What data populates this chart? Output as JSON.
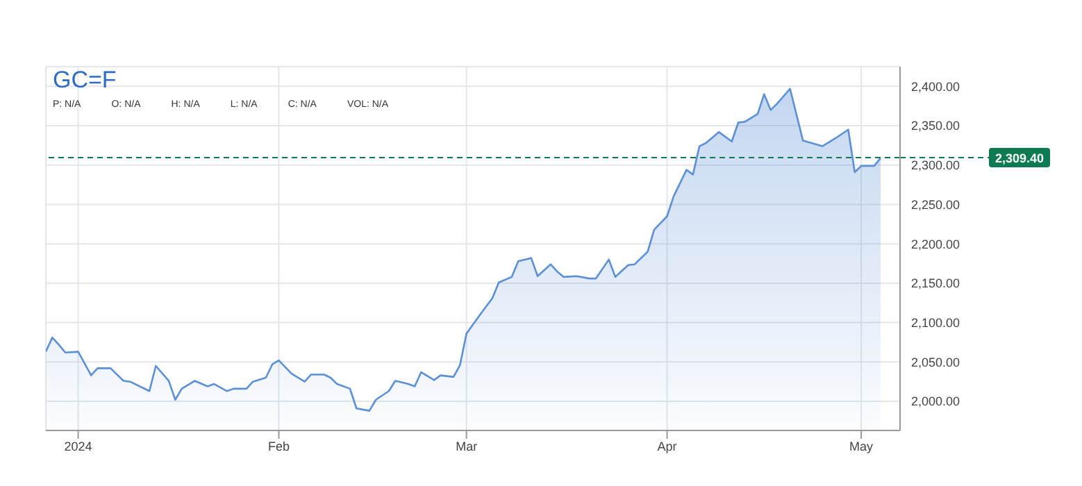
{
  "chart_data": {
    "type": "area",
    "title": "GC=F",
    "annotations": [
      "P: N/A",
      "O: N/A",
      "H: N/A",
      "L: N/A",
      "C: N/A",
      "VOL: N/A"
    ],
    "x": [
      "2023-12-27",
      "2023-12-28",
      "2023-12-29",
      "2023-12-30",
      "2024-01-01",
      "2024-01-03",
      "2024-01-04",
      "2024-01-06",
      "2024-01-08",
      "2024-01-09",
      "2024-01-12",
      "2024-01-13",
      "2024-01-15",
      "2024-01-16",
      "2024-01-17",
      "2024-01-19",
      "2024-01-21",
      "2024-01-22",
      "2024-01-24",
      "2024-01-25",
      "2024-01-27",
      "2024-01-28",
      "2024-01-30",
      "2024-01-31",
      "2024-02-01",
      "2024-02-03",
      "2024-02-05",
      "2024-02-06",
      "2024-02-08",
      "2024-02-09",
      "2024-02-10",
      "2024-02-12",
      "2024-02-13",
      "2024-02-15",
      "2024-02-16",
      "2024-02-18",
      "2024-02-19",
      "2024-02-21",
      "2024-02-22",
      "2024-02-23",
      "2024-02-25",
      "2024-02-26",
      "2024-02-28",
      "2024-02-29",
      "2024-03-01",
      "2024-03-03",
      "2024-03-05",
      "2024-03-06",
      "2024-03-08",
      "2024-03-09",
      "2024-03-11",
      "2024-03-12",
      "2024-03-14",
      "2024-03-15",
      "2024-03-16",
      "2024-03-18",
      "2024-03-20",
      "2024-03-21",
      "2024-03-23",
      "2024-03-24",
      "2024-03-26",
      "2024-03-27",
      "2024-03-29",
      "2024-03-30",
      "2024-04-01",
      "2024-04-02",
      "2024-04-04",
      "2024-04-05",
      "2024-04-06",
      "2024-04-07",
      "2024-04-09",
      "2024-04-11",
      "2024-04-12",
      "2024-04-13",
      "2024-04-15",
      "2024-04-16",
      "2024-04-17",
      "2024-04-18",
      "2024-04-20",
      "2024-04-22",
      "2024-04-25",
      "2024-04-27",
      "2024-04-29",
      "2024-04-30",
      "2024-05-01",
      "2024-05-03",
      "2024-05-04"
    ],
    "series": [
      {
        "color": "#5b8fd6",
        "values": [
          2063,
          2081,
          2072,
          2062,
          2063,
          2033,
          2042,
          2042,
          2026,
          2025,
          2013,
          2045,
          2026,
          2002,
          2016,
          2026,
          2019,
          2022,
          2013,
          2016,
          2016,
          2025,
          2030,
          2047,
          2052,
          2035,
          2025,
          2034,
          2034,
          2030,
          2022,
          2016,
          1991,
          1988,
          2002,
          2013,
          2026,
          2022,
          2019,
          2037,
          2027,
          2033,
          2031,
          2046,
          2086,
          2109,
          2131,
          2151,
          2158,
          2178,
          2182,
          2159,
          2174,
          2165,
          2158,
          2159,
          2156,
          2156,
          2180,
          2158,
          2173,
          2174,
          2190,
          2218,
          2235,
          2260,
          2294,
          2288,
          2324,
          2328,
          2342,
          2330,
          2354,
          2355,
          2365,
          2390,
          2370,
          2378,
          2397,
          2331,
          2324,
          2334,
          2345,
          2291,
          2299,
          2299,
          2309
        ]
      }
    ],
    "xlim": [
      "2023-12-27",
      "2024-05-07"
    ],
    "xticks": [
      {
        "value": "2024-01-01",
        "label": "2024"
      },
      {
        "value": "2024-02-01",
        "label": "Feb"
      },
      {
        "value": "2024-03-01",
        "label": "Mar"
      },
      {
        "value": "2024-04-01",
        "label": "Apr"
      },
      {
        "value": "2024-05-01",
        "label": "May"
      }
    ],
    "ylim": [
      1963,
      2425
    ],
    "yticks": [
      {
        "value": 2000,
        "label": "2,000.00"
      },
      {
        "value": 2050,
        "label": "2,050.00"
      },
      {
        "value": 2100,
        "label": "2,100.00"
      },
      {
        "value": 2150,
        "label": "2,150.00"
      },
      {
        "value": 2200,
        "label": "2,200.00"
      },
      {
        "value": 2250,
        "label": "2,250.00"
      },
      {
        "value": 2300,
        "label": "2,300.00"
      },
      {
        "value": 2350,
        "label": "2,350.00"
      },
      {
        "value": 2400,
        "label": "2,400.00"
      }
    ],
    "ref_lines": [
      {
        "axis": "y",
        "value": 2309.4,
        "label": "2,309.40",
        "color": "#0e7a52",
        "line_style": "dashed"
      }
    ],
    "grid": true,
    "marker": "none",
    "line_style": "solid"
  }
}
